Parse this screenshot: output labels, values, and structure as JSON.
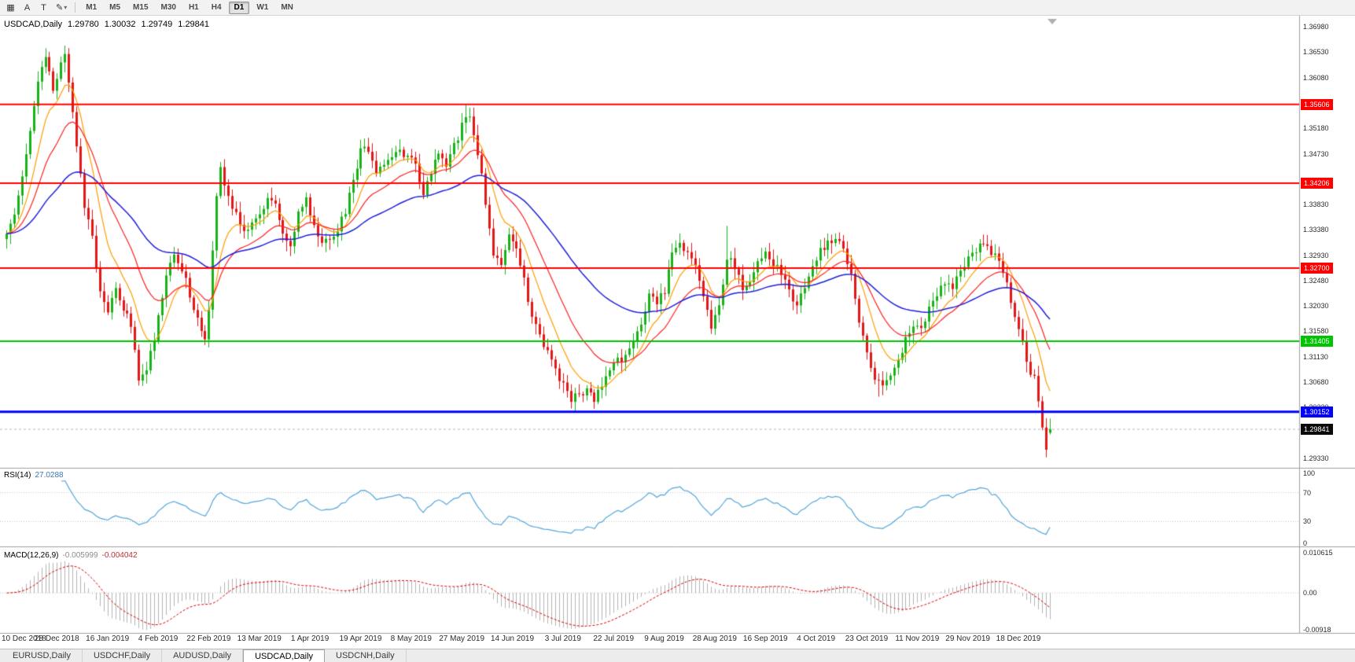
{
  "ui": {
    "toolbar": {
      "tools": [
        {
          "glyph": "▦",
          "name": "chart-window-icon"
        },
        {
          "glyph": "A",
          "name": "arrow-tool-button"
        },
        {
          "glyph": "T",
          "name": "text-tool-button"
        },
        {
          "glyph": "✎",
          "name": "draw-tool-button",
          "caret": "▾"
        }
      ],
      "timeframes": [
        "M1",
        "M5",
        "M15",
        "M30",
        "H1",
        "H4",
        "D1",
        "W1",
        "MN"
      ],
      "active_timeframe": "D1"
    },
    "chart_label": {
      "symbol": "USDCAD,Daily",
      "open": "1.29780",
      "high": "1.30032",
      "low": "1.29749",
      "close": "1.29841"
    },
    "rsi_label": {
      "name": "RSI(14)",
      "value": "27.0288"
    },
    "macd_label": {
      "name": "MACD(12,26,9)",
      "main": "-0.005999",
      "signal": "-0.004042"
    },
    "price_ticks": [
      {
        "p": 1.3698,
        "t": "1.36980"
      },
      {
        "p": 1.3653,
        "t": "1.36530"
      },
      {
        "p": 1.3608,
        "t": "1.36080"
      },
      {
        "p": 1.3518,
        "t": "1.35180"
      },
      {
        "p": 1.3473,
        "t": "1.34730"
      },
      {
        "p": 1.3383,
        "t": "1.33830"
      },
      {
        "p": 1.3338,
        "t": "1.33380"
      },
      {
        "p": 1.3293,
        "t": "1.32930"
      },
      {
        "p": 1.3248,
        "t": "1.32480"
      },
      {
        "p": 1.3203,
        "t": "1.32030"
      },
      {
        "p": 1.3158,
        "t": "1.31580"
      },
      {
        "p": 1.3113,
        "t": "1.31130"
      },
      {
        "p": 1.3068,
        "t": "1.30680"
      },
      {
        "p": 1.3023,
        "t": "1.30230"
      },
      {
        "p": 1.2933,
        "t": "1.29330"
      }
    ],
    "rsi_ticks": [
      {
        "v": 100,
        "t": "100"
      },
      {
        "v": 70,
        "t": "70"
      },
      {
        "v": 30,
        "t": "30"
      },
      {
        "v": 0,
        "t": "0"
      }
    ],
    "macd_ticks": [
      {
        "v": 0.010615,
        "t": "0.010615"
      },
      {
        "v": 0,
        "t": "0.00"
      },
      {
        "v": -0.00918,
        "t": "-0.00918"
      }
    ],
    "tabs": [
      "EURUSD,Daily",
      "USDCHF,Daily",
      "AUDUSD,Daily",
      "USDCAD,Daily",
      "USDCNH,Daily"
    ],
    "active_tab": "USDCAD,Daily"
  },
  "chart_data": {
    "type": "candlestick",
    "symbol": "USDCAD",
    "period": "Daily",
    "bars": 269,
    "price_range": [
      1.292,
      1.3715
    ],
    "colors": {
      "up": "#17b217",
      "down": "#e51616",
      "current_price_line": "#b8b8b8"
    },
    "last_bar": {
      "open": 1.2978,
      "high": 1.30032,
      "low": 1.29749,
      "close": 1.29841
    },
    "current_price": 1.29841,
    "noise_seed": 13,
    "noise_amp": 0.0016,
    "close_waypoints": [
      [
        0,
        1.333
      ],
      [
        2,
        1.3372
      ],
      [
        4,
        1.344
      ],
      [
        6,
        1.352
      ],
      [
        8,
        1.36
      ],
      [
        10,
        1.3642
      ],
      [
        12,
        1.3588
      ],
      [
        14,
        1.3634
      ],
      [
        15,
        1.3652
      ],
      [
        16,
        1.3598
      ],
      [
        18,
        1.3492
      ],
      [
        20,
        1.3378
      ],
      [
        22,
        1.333
      ],
      [
        24,
        1.3225
      ],
      [
        26,
        1.3198
      ],
      [
        28,
        1.3242
      ],
      [
        30,
        1.3198
      ],
      [
        32,
        1.3168
      ],
      [
        34,
        1.3075
      ],
      [
        36,
        1.3092
      ],
      [
        38,
        1.3148
      ],
      [
        41,
        1.3262
      ],
      [
        43,
        1.33
      ],
      [
        45,
        1.3268
      ],
      [
        47,
        1.3224
      ],
      [
        49,
        1.3178
      ],
      [
        51,
        1.315
      ],
      [
        52,
        1.32
      ],
      [
        54,
        1.339
      ],
      [
        55,
        1.3445
      ],
      [
        57,
        1.34
      ],
      [
        59,
        1.3365
      ],
      [
        61,
        1.334
      ],
      [
        63,
        1.3348
      ],
      [
        65,
        1.3358
      ],
      [
        67,
        1.3396
      ],
      [
        69,
        1.3378
      ],
      [
        71,
        1.3328
      ],
      [
        73,
        1.3302
      ],
      [
        75,
        1.3366
      ],
      [
        77,
        1.339
      ],
      [
        79,
        1.3344
      ],
      [
        81,
        1.3318
      ],
      [
        83,
        1.3322
      ],
      [
        85,
        1.3342
      ],
      [
        87,
        1.3372
      ],
      [
        89,
        1.3422
      ],
      [
        91,
        1.3476
      ],
      [
        93,
        1.3482
      ],
      [
        95,
        1.3444
      ],
      [
        97,
        1.3456
      ],
      [
        99,
        1.3472
      ],
      [
        101,
        1.3476
      ],
      [
        103,
        1.3464
      ],
      [
        105,
        1.3454
      ],
      [
        107,
        1.3406
      ],
      [
        109,
        1.3442
      ],
      [
        111,
        1.3472
      ],
      [
        113,
        1.3446
      ],
      [
        115,
        1.3486
      ],
      [
        117,
        1.3522
      ],
      [
        119,
        1.3546
      ],
      [
        121,
        1.3478
      ],
      [
        123,
        1.3388
      ],
      [
        125,
        1.3298
      ],
      [
        127,
        1.3282
      ],
      [
        129,
        1.3322
      ],
      [
        131,
        1.3298
      ],
      [
        133,
        1.3248
      ],
      [
        135,
        1.3188
      ],
      [
        137,
        1.3148
      ],
      [
        139,
        1.3124
      ],
      [
        141,
        1.3088
      ],
      [
        143,
        1.3062
      ],
      [
        145,
        1.3034
      ],
      [
        147,
        1.3046
      ],
      [
        149,
        1.3054
      ],
      [
        151,
        1.3036
      ],
      [
        153,
        1.3062
      ],
      [
        155,
        1.3092
      ],
      [
        157,
        1.3104
      ],
      [
        159,
        1.3112
      ],
      [
        161,
        1.3136
      ],
      [
        163,
        1.3176
      ],
      [
        165,
        1.3222
      ],
      [
        167,
        1.3212
      ],
      [
        169,
        1.3232
      ],
      [
        171,
        1.3292
      ],
      [
        173,
        1.3318
      ],
      [
        175,
        1.3294
      ],
      [
        177,
        1.3268
      ],
      [
        179,
        1.3224
      ],
      [
        181,
        1.3168
      ],
      [
        183,
        1.3202
      ],
      [
        185,
        1.3292
      ],
      [
        187,
        1.3268
      ],
      [
        189,
        1.3236
      ],
      [
        191,
        1.3242
      ],
      [
        193,
        1.3286
      ],
      [
        195,
        1.3298
      ],
      [
        197,
        1.3278
      ],
      [
        199,
        1.3258
      ],
      [
        201,
        1.3228
      ],
      [
        203,
        1.3198
      ],
      [
        205,
        1.3242
      ],
      [
        207,
        1.3272
      ],
      [
        209,
        1.3302
      ],
      [
        211,
        1.3318
      ],
      [
        213,
        1.3326
      ],
      [
        215,
        1.3308
      ],
      [
        217,
        1.3258
      ],
      [
        219,
        1.3178
      ],
      [
        221,
        1.3124
      ],
      [
        223,
        1.3076
      ],
      [
        225,
        1.3056
      ],
      [
        227,
        1.3072
      ],
      [
        229,
        1.3102
      ],
      [
        231,
        1.315
      ],
      [
        233,
        1.3172
      ],
      [
        235,
        1.3168
      ],
      [
        237,
        1.3195
      ],
      [
        239,
        1.3215
      ],
      [
        241,
        1.3248
      ],
      [
        243,
        1.324
      ],
      [
        245,
        1.3258
      ],
      [
        247,
        1.3285
      ],
      [
        249,
        1.3305
      ],
      [
        251,
        1.3315
      ],
      [
        253,
        1.3298
      ],
      [
        255,
        1.3282
      ],
      [
        257,
        1.324
      ],
      [
        259,
        1.3185
      ],
      [
        261,
        1.3135
      ],
      [
        263,
        1.3085
      ],
      [
        264,
        1.3078
      ],
      [
        265,
        1.304
      ],
      [
        266,
        1.298
      ],
      [
        267,
        1.2946
      ],
      [
        268,
        1.29841
      ]
    ],
    "wick_anchors": [
      [
        15,
        "h",
        1.3665
      ],
      [
        55,
        "h",
        1.3455
      ],
      [
        118,
        "h",
        1.3561
      ],
      [
        146,
        "l",
        1.3016
      ],
      [
        185,
        "h",
        1.3345
      ],
      [
        224,
        "l",
        1.3042
      ],
      [
        267,
        "l",
        1.2936
      ]
    ],
    "horizontal_lines": [
      {
        "price": 1.35606,
        "color": "#ff0000",
        "width": 2
      },
      {
        "price": 1.34206,
        "color": "#ff0000",
        "width": 2
      },
      {
        "price": 1.327,
        "color": "#ff0000",
        "width": 2
      },
      {
        "price": 1.31405,
        "color": "#00c400",
        "width": 2
      },
      {
        "price": 1.30152,
        "color": "#0000ff",
        "width": 3
      }
    ],
    "moving_averages": [
      {
        "period": 9,
        "color": "#ff9c00",
        "width": 1.2
      },
      {
        "period": 20,
        "color": "#ff2020",
        "width": 1.2
      },
      {
        "period": 52,
        "color": "#2020dd",
        "width": 1.5
      }
    ],
    "indicators": {
      "rsi": {
        "period": 14,
        "current": "27.0288",
        "levels": [
          70,
          30
        ],
        "range": [
          0,
          100
        ],
        "color": "#53a6dc"
      },
      "macd": {
        "fast": 12,
        "slow": 26,
        "signal": 9,
        "current_main": "-0.005999",
        "current_signal": "-0.004042",
        "range": [
          -0.00918,
          0.010615
        ],
        "histogram_color": "#b4b4b4",
        "signal_color": "#dd0000"
      }
    },
    "x_labels": [
      {
        "i": 0,
        "t": "10 Dec 2018"
      },
      {
        "i": 13,
        "t": "28 Dec 2018"
      },
      {
        "i": 26,
        "t": "16 Jan 2019"
      },
      {
        "i": 39,
        "t": "4 Feb 2019"
      },
      {
        "i": 52,
        "t": "22 Feb 2019"
      },
      {
        "i": 65,
        "t": "13 Mar 2019"
      },
      {
        "i": 78,
        "t": "1 Apr 2019"
      },
      {
        "i": 91,
        "t": "19 Apr 2019"
      },
      {
        "i": 104,
        "t": "8 May 2019"
      },
      {
        "i": 117,
        "t": "27 May 2019"
      },
      {
        "i": 130,
        "t": "14 Jun 2019"
      },
      {
        "i": 143,
        "t": "3 Jul 2019"
      },
      {
        "i": 156,
        "t": "22 Jul 2019"
      },
      {
        "i": 169,
        "t": "9 Aug 2019"
      },
      {
        "i": 182,
        "t": "28 Aug 2019"
      },
      {
        "i": 195,
        "t": "16 Sep 2019"
      },
      {
        "i": 208,
        "t": "4 Oct 2019"
      },
      {
        "i": 221,
        "t": "23 Oct 2019"
      },
      {
        "i": 234,
        "t": "11 Nov 2019"
      },
      {
        "i": 247,
        "t": "29 Nov 2019"
      },
      {
        "i": 260,
        "t": "18 Dec 2019"
      }
    ]
  }
}
